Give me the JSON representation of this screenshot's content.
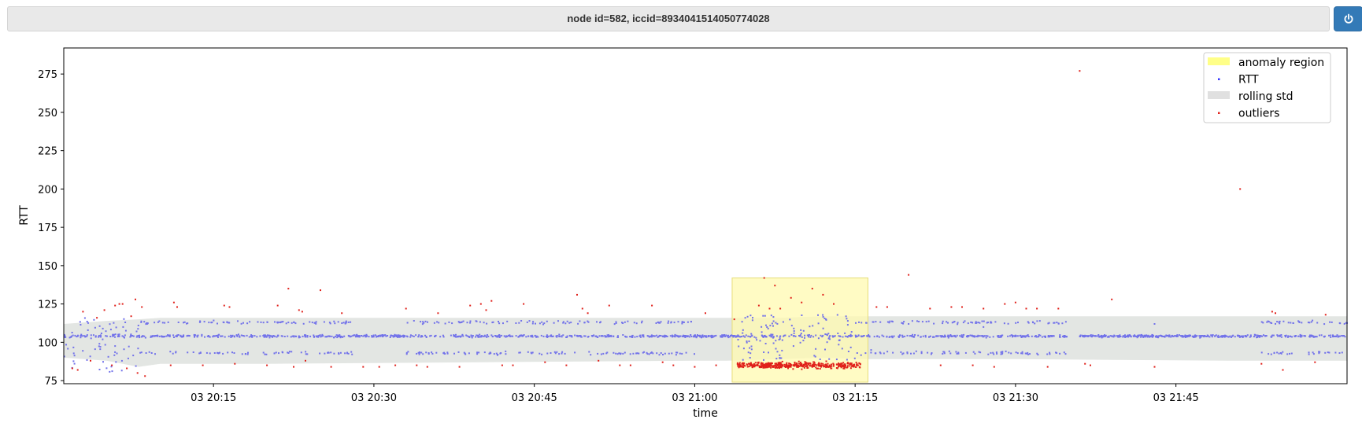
{
  "header": {
    "title": "node id=582, iccid=8934041514050774028",
    "power_icon": "power-icon"
  },
  "chart_data": {
    "type": "scatter",
    "title": "",
    "xlabel": "time",
    "ylabel": "RTT",
    "x_range": [
      "20:01",
      "22:01"
    ],
    "ylim": [
      73,
      292
    ],
    "x_ticks": [
      {
        "time": "20:15",
        "label": "03 20:15"
      },
      {
        "time": "20:30",
        "label": "03 20:30"
      },
      {
        "time": "20:45",
        "label": "03 20:45"
      },
      {
        "time": "21:00",
        "label": "03 21:00"
      },
      {
        "time": "21:15",
        "label": "03 21:15"
      },
      {
        "time": "21:30",
        "label": "03 21:30"
      },
      {
        "time": "21:45",
        "label": "03 21:45"
      }
    ],
    "y_ticks": [
      75,
      100,
      125,
      150,
      175,
      200,
      225,
      250,
      275
    ],
    "grid": false,
    "legend_position": "top-right",
    "legend": [
      {
        "label": "anomaly region",
        "kind": "patch",
        "color": "#ffff88"
      },
      {
        "label": "RTT",
        "kind": "point",
        "color": "#3333ff"
      },
      {
        "label": "rolling std",
        "kind": "patch",
        "color": "#e0e0e0"
      },
      {
        "label": "outliers",
        "kind": "point",
        "color": "#e0201a"
      }
    ],
    "colors": {
      "rtt": "#7272ea",
      "outlier": "#e0201a",
      "anomaly_fill": "#fff9b0",
      "anomaly_edge": "#e6dd7a",
      "band": "#e3e6e3"
    },
    "anomaly_region": {
      "x_start": "21:03.5",
      "x_end": "21:16.2",
      "y_min": 74,
      "y_max": 142
    },
    "rolling_std_band": [
      {
        "time": "20:01",
        "low": 90,
        "high": 112
      },
      {
        "time": "20:05",
        "low": 88,
        "high": 114
      },
      {
        "time": "20:08",
        "low": 84,
        "high": 115
      },
      {
        "time": "20:10",
        "low": 86,
        "high": 116
      },
      {
        "time": "20:20",
        "low": 86,
        "high": 116
      },
      {
        "time": "20:40",
        "low": 87,
        "high": 116
      },
      {
        "time": "21:00",
        "low": 88,
        "high": 116
      },
      {
        "time": "21:03",
        "low": 88,
        "high": 116
      },
      {
        "time": "21:08",
        "low": 89,
        "high": 116
      },
      {
        "time": "21:12",
        "low": 90,
        "high": 117
      },
      {
        "time": "21:16",
        "low": 89,
        "high": 117
      },
      {
        "time": "21:30",
        "low": 89,
        "high": 117
      },
      {
        "time": "21:50",
        "low": 88,
        "high": 117
      },
      {
        "time": "22:01",
        "low": 88,
        "high": 117
      }
    ],
    "rtt_series": {
      "name": "RTT",
      "main_level": 104,
      "secondary_levels": [
        93,
        113
      ],
      "segments": [
        {
          "start": "20:01",
          "end": "20:08",
          "pattern": "scattered",
          "min": 80,
          "max": 116
        },
        {
          "start": "20:08",
          "end": "20:28",
          "pattern": "banded"
        },
        {
          "start": "20:28",
          "end": "20:33",
          "pattern": "flat"
        },
        {
          "start": "20:33",
          "end": "21:00",
          "pattern": "banded"
        },
        {
          "start": "21:00",
          "end": "21:04",
          "pattern": "flat"
        },
        {
          "start": "21:04",
          "end": "21:15",
          "pattern": "scattered",
          "min": 88,
          "max": 118
        },
        {
          "start": "21:15",
          "end": "21:35",
          "pattern": "banded"
        },
        {
          "start": "21:36",
          "end": "21:53",
          "pattern": "flat"
        },
        {
          "start": "21:53",
          "end": "22:01",
          "pattern": "banded"
        }
      ],
      "highlighted_points": [
        {
          "time": "21:16.5",
          "rtt": 95
        },
        {
          "time": "21:20",
          "rtt": 112
        },
        {
          "time": "21:27",
          "rtt": 110
        },
        {
          "time": "21:43",
          "rtt": 112
        }
      ]
    },
    "outliers": {
      "name": "outliers",
      "cluster": {
        "start": "21:04",
        "end": "21:15.5",
        "center": 85,
        "spread": 3,
        "count": 400
      },
      "points": [
        {
          "time": "20:01.8",
          "rtt": 83
        },
        {
          "time": "20:02.3",
          "rtt": 82
        },
        {
          "time": "20:02.8",
          "rtt": 120
        },
        {
          "time": "20:03.5",
          "rtt": 88
        },
        {
          "time": "20:04.1",
          "rtt": 116
        },
        {
          "time": "20:04.8",
          "rtt": 121
        },
        {
          "time": "20:05.5",
          "rtt": 85
        },
        {
          "time": "20:05.8",
          "rtt": 124
        },
        {
          "time": "20:06.2",
          "rtt": 125
        },
        {
          "time": "20:06.5",
          "rtt": 125
        },
        {
          "time": "20:06.9",
          "rtt": 83
        },
        {
          "time": "20:07.3",
          "rtt": 117
        },
        {
          "time": "20:07.7",
          "rtt": 128
        },
        {
          "time": "20:07.9",
          "rtt": 80
        },
        {
          "time": "20:08.3",
          "rtt": 123
        },
        {
          "time": "20:08.6",
          "rtt": 78
        },
        {
          "time": "20:11",
          "rtt": 85
        },
        {
          "time": "20:11.3",
          "rtt": 126
        },
        {
          "time": "20:11.6",
          "rtt": 123
        },
        {
          "time": "20:14",
          "rtt": 85
        },
        {
          "time": "20:16",
          "rtt": 124
        },
        {
          "time": "20:16.5",
          "rtt": 123
        },
        {
          "time": "20:17",
          "rtt": 86
        },
        {
          "time": "20:20",
          "rtt": 85
        },
        {
          "time": "20:21",
          "rtt": 124
        },
        {
          "time": "20:22",
          "rtt": 135
        },
        {
          "time": "20:22.5",
          "rtt": 84
        },
        {
          "time": "20:23",
          "rtt": 121
        },
        {
          "time": "20:23.3",
          "rtt": 120
        },
        {
          "time": "20:23.6",
          "rtt": 88
        },
        {
          "time": "20:25",
          "rtt": 134
        },
        {
          "time": "20:26",
          "rtt": 84
        },
        {
          "time": "20:27",
          "rtt": 119
        },
        {
          "time": "20:29",
          "rtt": 84
        },
        {
          "time": "20:30.5",
          "rtt": 84
        },
        {
          "time": "20:32",
          "rtt": 85
        },
        {
          "time": "20:33",
          "rtt": 122
        },
        {
          "time": "20:34",
          "rtt": 85
        },
        {
          "time": "20:35",
          "rtt": 84
        },
        {
          "time": "20:36",
          "rtt": 119
        },
        {
          "time": "20:38",
          "rtt": 84
        },
        {
          "time": "20:39",
          "rtt": 124
        },
        {
          "time": "20:40",
          "rtt": 125
        },
        {
          "time": "20:40.5",
          "rtt": 121
        },
        {
          "time": "20:41",
          "rtt": 127
        },
        {
          "time": "20:42",
          "rtt": 85
        },
        {
          "time": "20:43",
          "rtt": 85
        },
        {
          "time": "20:44",
          "rtt": 125
        },
        {
          "time": "20:46",
          "rtt": 87
        },
        {
          "time": "20:48",
          "rtt": 85
        },
        {
          "time": "20:49",
          "rtt": 131
        },
        {
          "time": "20:49.5",
          "rtt": 122
        },
        {
          "time": "20:50",
          "rtt": 119
        },
        {
          "time": "20:51",
          "rtt": 88
        },
        {
          "time": "20:52",
          "rtt": 124
        },
        {
          "time": "20:53",
          "rtt": 85
        },
        {
          "time": "20:54",
          "rtt": 85
        },
        {
          "time": "20:56",
          "rtt": 124
        },
        {
          "time": "20:57",
          "rtt": 87
        },
        {
          "time": "20:58",
          "rtt": 85
        },
        {
          "time": "21:00",
          "rtt": 84
        },
        {
          "time": "21:01",
          "rtt": 119
        },
        {
          "time": "21:02",
          "rtt": 85
        },
        {
          "time": "21:03.7",
          "rtt": 115
        },
        {
          "time": "21:06",
          "rtt": 124
        },
        {
          "time": "21:06.5",
          "rtt": 142
        },
        {
          "time": "21:07",
          "rtt": 122
        },
        {
          "time": "21:07.5",
          "rtt": 137
        },
        {
          "time": "21:08",
          "rtt": 122
        },
        {
          "time": "21:09",
          "rtt": 129
        },
        {
          "time": "21:10",
          "rtt": 126
        },
        {
          "time": "21:11",
          "rtt": 135
        },
        {
          "time": "21:12",
          "rtt": 131
        },
        {
          "time": "21:13",
          "rtt": 125
        },
        {
          "time": "21:17",
          "rtt": 123
        },
        {
          "time": "21:18",
          "rtt": 123
        },
        {
          "time": "21:20",
          "rtt": 144
        },
        {
          "time": "21:22",
          "rtt": 122
        },
        {
          "time": "21:23",
          "rtt": 85
        },
        {
          "time": "21:24",
          "rtt": 123
        },
        {
          "time": "21:25",
          "rtt": 123
        },
        {
          "time": "21:26",
          "rtt": 85
        },
        {
          "time": "21:27",
          "rtt": 122
        },
        {
          "time": "21:28",
          "rtt": 84
        },
        {
          "time": "21:29",
          "rtt": 125
        },
        {
          "time": "21:30",
          "rtt": 126
        },
        {
          "time": "21:31",
          "rtt": 122
        },
        {
          "time": "21:32",
          "rtt": 122
        },
        {
          "time": "21:33",
          "rtt": 84
        },
        {
          "time": "21:34",
          "rtt": 122
        },
        {
          "time": "21:36",
          "rtt": 277
        },
        {
          "time": "21:36.5",
          "rtt": 86
        },
        {
          "time": "21:37",
          "rtt": 85
        },
        {
          "time": "21:39",
          "rtt": 128
        },
        {
          "time": "21:43",
          "rtt": 84
        },
        {
          "time": "21:51",
          "rtt": 200
        },
        {
          "time": "21:53",
          "rtt": 86
        },
        {
          "time": "21:54",
          "rtt": 120
        },
        {
          "time": "21:54.3",
          "rtt": 119
        },
        {
          "time": "21:55",
          "rtt": 82
        },
        {
          "time": "21:58",
          "rtt": 87
        },
        {
          "time": "21:59",
          "rtt": 118
        }
      ]
    }
  }
}
